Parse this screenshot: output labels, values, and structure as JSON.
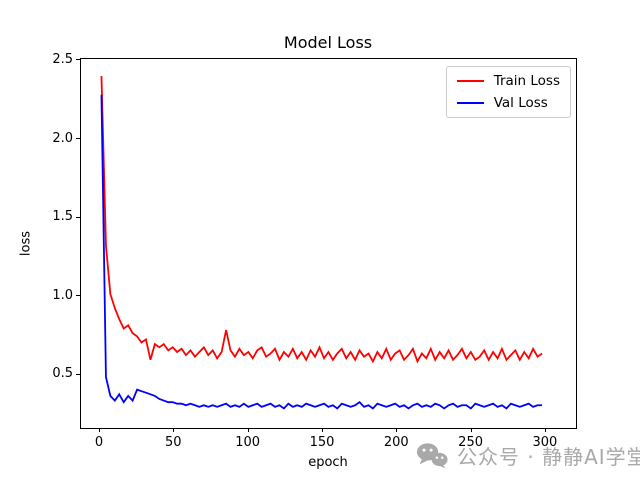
{
  "chart_data": {
    "type": "line",
    "title": "Model Loss",
    "xlabel": "epoch",
    "ylabel": "loss",
    "xlim": [
      -12.8,
      320.9
    ],
    "ylim": [
      0.155,
      2.509
    ],
    "xticks": [
      0,
      50,
      100,
      150,
      200,
      250,
      300
    ],
    "yticks": [
      0.5,
      1.0,
      1.5,
      2.0,
      2.5
    ],
    "grid": false,
    "legend_position": "upper right",
    "x": [
      1,
      4,
      7,
      10,
      13,
      16,
      19,
      22,
      25,
      28,
      31,
      34,
      37,
      40,
      43,
      46,
      49,
      52,
      55,
      58,
      61,
      64,
      67,
      70,
      73,
      76,
      79,
      82,
      85,
      88,
      91,
      94,
      97,
      100,
      103,
      106,
      109,
      112,
      115,
      118,
      121,
      124,
      127,
      130,
      133,
      136,
      139,
      142,
      145,
      148,
      151,
      154,
      157,
      160,
      163,
      166,
      169,
      172,
      175,
      178,
      181,
      184,
      187,
      190,
      193,
      196,
      199,
      202,
      205,
      208,
      211,
      214,
      217,
      220,
      223,
      226,
      229,
      232,
      235,
      238,
      241,
      244,
      247,
      250,
      253,
      256,
      259,
      262,
      265,
      268,
      271,
      274,
      277,
      280,
      283,
      286,
      289,
      292,
      295,
      298
    ],
    "series": [
      {
        "name": "Train Loss",
        "color": "#ff0000",
        "values": [
          2.4,
          1.32,
          1.01,
          0.92,
          0.85,
          0.79,
          0.81,
          0.76,
          0.74,
          0.7,
          0.72,
          0.59,
          0.69,
          0.67,
          0.69,
          0.65,
          0.67,
          0.64,
          0.66,
          0.62,
          0.65,
          0.61,
          0.64,
          0.67,
          0.62,
          0.65,
          0.6,
          0.64,
          0.78,
          0.65,
          0.61,
          0.66,
          0.62,
          0.64,
          0.6,
          0.65,
          0.67,
          0.61,
          0.63,
          0.66,
          0.59,
          0.64,
          0.61,
          0.66,
          0.6,
          0.64,
          0.59,
          0.65,
          0.61,
          0.67,
          0.6,
          0.64,
          0.59,
          0.63,
          0.66,
          0.6,
          0.64,
          0.59,
          0.65,
          0.61,
          0.63,
          0.58,
          0.64,
          0.6,
          0.66,
          0.59,
          0.63,
          0.65,
          0.59,
          0.62,
          0.66,
          0.58,
          0.63,
          0.6,
          0.66,
          0.59,
          0.64,
          0.6,
          0.65,
          0.59,
          0.62,
          0.66,
          0.6,
          0.64,
          0.59,
          0.61,
          0.65,
          0.59,
          0.64,
          0.6,
          0.66,
          0.59,
          0.62,
          0.65,
          0.59,
          0.64,
          0.6,
          0.66,
          0.61,
          0.63
        ]
      },
      {
        "name": "Val Loss",
        "color": "#0000ff",
        "values": [
          2.28,
          0.48,
          0.36,
          0.33,
          0.37,
          0.32,
          0.36,
          0.33,
          0.4,
          0.39,
          0.38,
          0.37,
          0.36,
          0.34,
          0.33,
          0.32,
          0.32,
          0.31,
          0.31,
          0.3,
          0.31,
          0.3,
          0.29,
          0.3,
          0.29,
          0.3,
          0.29,
          0.3,
          0.31,
          0.29,
          0.3,
          0.29,
          0.31,
          0.29,
          0.3,
          0.31,
          0.29,
          0.3,
          0.31,
          0.29,
          0.3,
          0.28,
          0.31,
          0.29,
          0.3,
          0.29,
          0.31,
          0.3,
          0.29,
          0.3,
          0.31,
          0.29,
          0.3,
          0.28,
          0.31,
          0.3,
          0.29,
          0.3,
          0.32,
          0.29,
          0.3,
          0.28,
          0.31,
          0.3,
          0.29,
          0.3,
          0.31,
          0.29,
          0.3,
          0.28,
          0.3,
          0.31,
          0.29,
          0.3,
          0.29,
          0.31,
          0.3,
          0.28,
          0.3,
          0.31,
          0.29,
          0.3,
          0.3,
          0.28,
          0.31,
          0.3,
          0.29,
          0.3,
          0.31,
          0.29,
          0.3,
          0.28,
          0.31,
          0.3,
          0.29,
          0.3,
          0.31,
          0.29,
          0.3,
          0.3
        ]
      }
    ]
  },
  "watermark": {
    "icon": "wechat-icon",
    "text": "公众号 · 静静AI学堂",
    "color": "#a9a9a9"
  },
  "colors": {
    "background": "#ffffff",
    "spine": "#000000",
    "legend_border": "#cccccc"
  }
}
